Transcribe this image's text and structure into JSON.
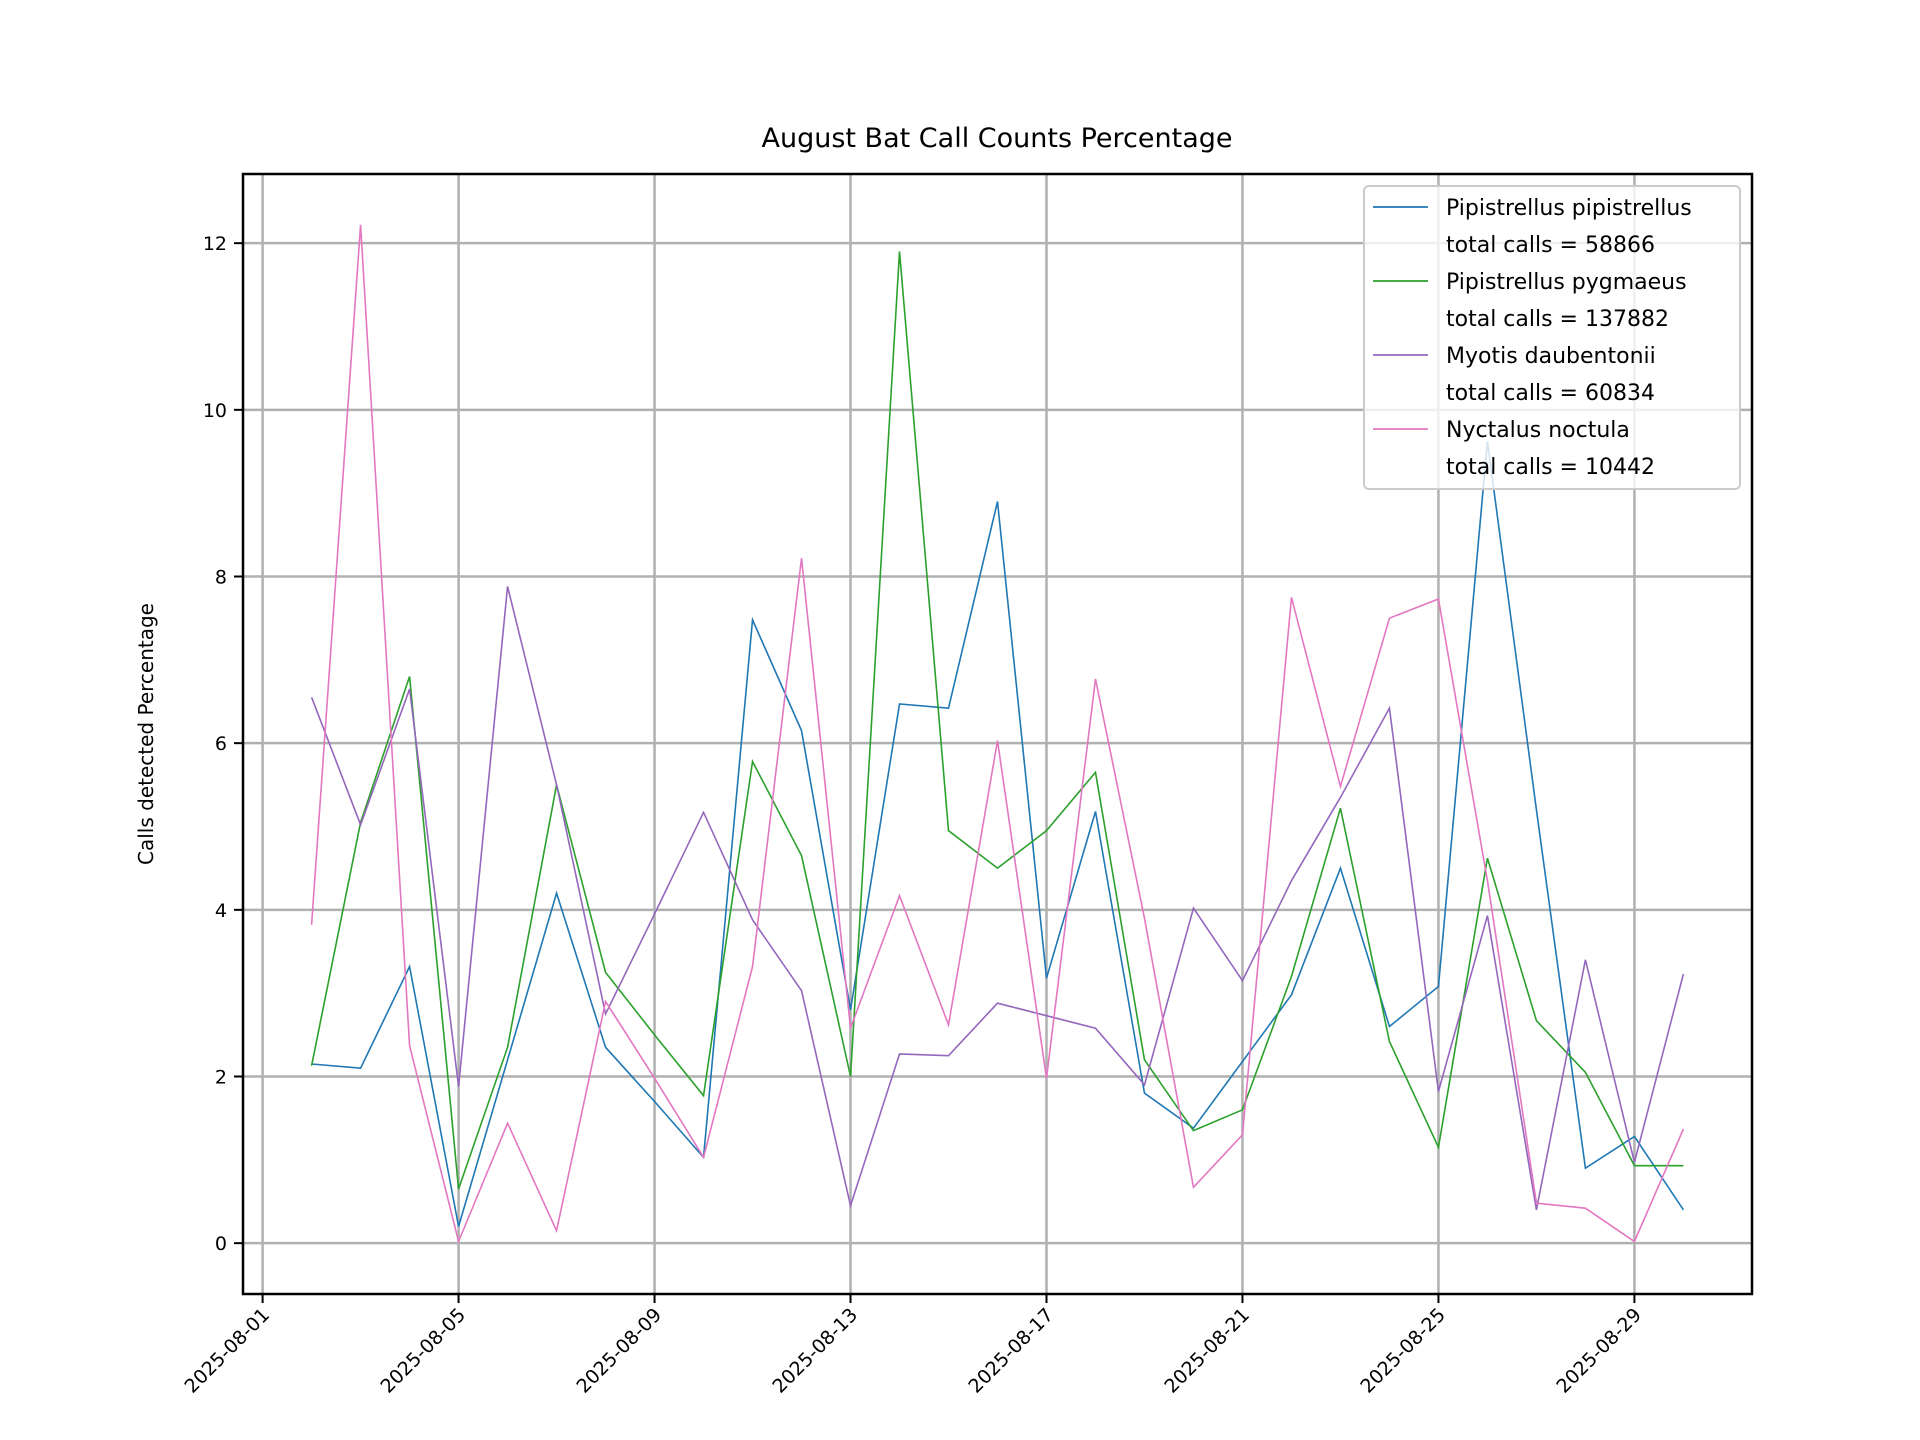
{
  "chart_data": {
    "type": "line",
    "title": "August Bat Call Counts Percentage",
    "xlabel": "",
    "ylabel": "Calls detected Percentage",
    "x": [
      "2025-08-02",
      "2025-08-03",
      "2025-08-04",
      "2025-08-05",
      "2025-08-06",
      "2025-08-07",
      "2025-08-08",
      "2025-08-09",
      "2025-08-10",
      "2025-08-11",
      "2025-08-12",
      "2025-08-13",
      "2025-08-14",
      "2025-08-15",
      "2025-08-16",
      "2025-08-17",
      "2025-08-18",
      "2025-08-19",
      "2025-08-20",
      "2025-08-21",
      "2025-08-22",
      "2025-08-23",
      "2025-08-24",
      "2025-08-25",
      "2025-08-26",
      "2025-08-27",
      "2025-08-28",
      "2025-08-29",
      "2025-08-30"
    ],
    "xticks": [
      "2025-08-01",
      "2025-08-05",
      "2025-08-09",
      "2025-08-13",
      "2025-08-17",
      "2025-08-21",
      "2025-08-25",
      "2025-08-29"
    ],
    "yticks": [
      0,
      2,
      4,
      6,
      8,
      10,
      12
    ],
    "xlim_days_from_aug01": [
      -0.4,
      30.4
    ],
    "ylim": [
      -0.61,
      12.83
    ],
    "grid": true,
    "legend_position": "top-right",
    "series": [
      {
        "name": "Pipistrellus pipistrellus",
        "total": "total calls = 58866",
        "color": "#1f77b4",
        "values": [
          2.15,
          2.1,
          3.32,
          0.2,
          2.2,
          4.2,
          2.35,
          1.7,
          1.03,
          7.48,
          6.15,
          2.8,
          6.47,
          6.42,
          8.9,
          3.18,
          5.18,
          1.8,
          1.38,
          2.18,
          2.98,
          4.5,
          2.6,
          3.08,
          9.62,
          5.2,
          0.9,
          1.28,
          0.4
        ]
      },
      {
        "name": "Pipistrellus pygmaeus",
        "total": "total calls = 137882",
        "color": "#2ca02c",
        "values": [
          2.13,
          5.05,
          6.8,
          0.65,
          2.35,
          5.5,
          3.25,
          2.5,
          1.77,
          5.78,
          4.65,
          2.0,
          11.9,
          4.95,
          4.5,
          4.95,
          5.65,
          2.2,
          1.35,
          1.6,
          3.2,
          5.22,
          2.42,
          1.15,
          4.62,
          2.67,
          2.05,
          0.93,
          0.93
        ]
      },
      {
        "name": "Myotis daubentonii",
        "total": "total calls = 60834",
        "color": "#9467bd",
        "values": [
          6.55,
          5.02,
          6.65,
          1.88,
          7.88,
          5.5,
          2.75,
          3.95,
          5.17,
          3.88,
          3.03,
          0.45,
          2.27,
          2.25,
          2.88,
          2.73,
          2.58,
          1.9,
          4.02,
          3.15,
          4.35,
          5.35,
          6.42,
          1.82,
          3.93,
          0.4,
          3.4,
          0.97,
          3.23
        ]
      },
      {
        "name": "Nyctalus noctula",
        "total": "total calls = 10442",
        "color": "#e377c2",
        "values": [
          3.82,
          12.22,
          2.37,
          0.02,
          1.44,
          0.15,
          2.9,
          1.98,
          1.03,
          3.32,
          8.22,
          2.58,
          4.17,
          2.62,
          6.03,
          1.98,
          6.77,
          3.9,
          0.67,
          1.3,
          7.75,
          5.48,
          7.5,
          7.73,
          4.35,
          0.48,
          0.42,
          0.02,
          1.37
        ]
      }
    ]
  }
}
